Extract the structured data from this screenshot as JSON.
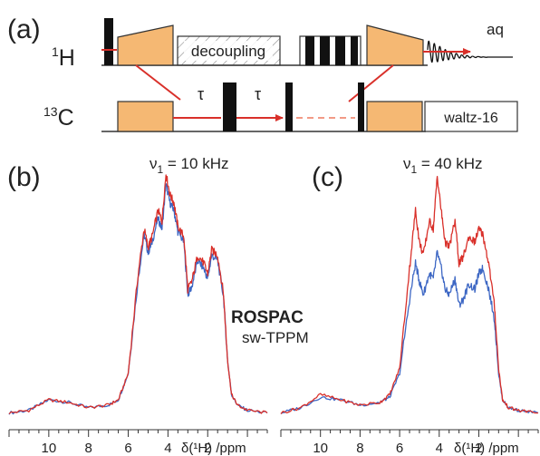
{
  "panel_labels": {
    "a": "(a)",
    "b": "(b)",
    "c": "(c)"
  },
  "pulse_sequence": {
    "channel_1H": {
      "mass": "1",
      "element": "H"
    },
    "channel_13C": {
      "mass": "13",
      "element": "C"
    },
    "decoupling_label": "decoupling",
    "acquisition_label": "aq",
    "tau_label_1": "τ",
    "tau_label_2": "τ",
    "carbon_decoupling_label": "waltz-16",
    "colors": {
      "cp_block": "#f5b873",
      "pulse": "#111111",
      "transfer_arrow": "#d9302a",
      "dashed_line": "#f29a86"
    }
  },
  "spectra": {
    "panel_b": {
      "nu_label": "ν",
      "nu_sub": "1",
      "nu_value": " = 10 kHz"
    },
    "panel_c": {
      "nu_label": "ν",
      "nu_sub": "1",
      "nu_value": " = 40 kHz"
    },
    "legend": [
      {
        "name": "ROSPAC",
        "color": "#d9302a"
      },
      {
        "name": "sw-TPPM",
        "color": "#3d67c4"
      }
    ],
    "x_axis": {
      "ticks_b": [
        "10",
        "8",
        "6",
        "4",
        "2"
      ],
      "ticks_c": [
        "10",
        "8",
        "6",
        "4",
        "2"
      ],
      "label_b": "δ(¹H) /ppm",
      "label_c": "δ(¹H) /ppm",
      "range_ppm": [
        12,
        -1
      ],
      "minor_tick_step_ppm": 0.5
    },
    "chart_data": [
      {
        "type": "line",
        "panel": "b",
        "xlabel": "δ(¹H) /ppm",
        "xlim": [
          12,
          -1
        ],
        "ylim": [
          0,
          1.0
        ],
        "series": [
          {
            "name": "ROSPAC",
            "color": "#d9302a",
            "x": [
              12.0,
              11.0,
              10.0,
              9.0,
              8.0,
              7.0,
              6.5,
              6.0,
              5.5,
              5.2,
              5.0,
              4.8,
              4.5,
              4.3,
              4.1,
              3.9,
              3.7,
              3.5,
              3.2,
              3.0,
              2.8,
              2.5,
              2.2,
              2.0,
              1.8,
              1.5,
              1.2,
              1.0,
              0.8,
              0.5,
              0.0,
              -1.0
            ],
            "y": [
              0.05,
              0.06,
              0.1,
              0.09,
              0.07,
              0.08,
              0.1,
              0.2,
              0.58,
              0.75,
              0.68,
              0.72,
              0.82,
              0.78,
              0.96,
              0.88,
              0.85,
              0.76,
              0.72,
              0.52,
              0.55,
              0.65,
              0.62,
              0.58,
              0.67,
              0.65,
              0.5,
              0.25,
              0.12,
              0.08,
              0.06,
              0.05
            ]
          },
          {
            "name": "sw-TPPM",
            "color": "#3d67c4",
            "x": [
              12.0,
              11.0,
              10.0,
              9.0,
              8.0,
              7.0,
              6.5,
              6.0,
              5.5,
              5.2,
              5.0,
              4.8,
              4.5,
              4.3,
              4.1,
              3.9,
              3.7,
              3.5,
              3.2,
              3.0,
              2.8,
              2.5,
              2.2,
              2.0,
              1.8,
              1.5,
              1.2,
              1.0,
              0.8,
              0.5,
              0.0,
              -1.0
            ],
            "y": [
              0.05,
              0.06,
              0.1,
              0.09,
              0.07,
              0.08,
              0.1,
              0.2,
              0.56,
              0.73,
              0.66,
              0.7,
              0.79,
              0.75,
              0.92,
              0.85,
              0.82,
              0.74,
              0.7,
              0.5,
              0.53,
              0.63,
              0.6,
              0.56,
              0.65,
              0.63,
              0.49,
              0.25,
              0.12,
              0.08,
              0.06,
              0.05
            ]
          }
        ]
      },
      {
        "type": "line",
        "panel": "c",
        "xlabel": "δ(¹H) /ppm",
        "xlim": [
          12,
          -1
        ],
        "ylim": [
          0,
          1.0
        ],
        "series": [
          {
            "name": "ROSPAC",
            "color": "#d9302a",
            "x": [
              12.0,
              11.0,
              10.0,
              9.0,
              8.0,
              7.0,
              6.5,
              6.0,
              5.5,
              5.2,
              5.0,
              4.8,
              4.5,
              4.3,
              4.1,
              3.9,
              3.7,
              3.5,
              3.2,
              3.0,
              2.8,
              2.5,
              2.2,
              2.0,
              1.8,
              1.5,
              1.2,
              1.0,
              0.8,
              0.5,
              0.0,
              -1.0
            ],
            "y": [
              0.05,
              0.07,
              0.12,
              0.1,
              0.08,
              0.09,
              0.12,
              0.22,
              0.6,
              0.82,
              0.7,
              0.65,
              0.78,
              0.75,
              0.95,
              0.82,
              0.7,
              0.68,
              0.78,
              0.62,
              0.64,
              0.72,
              0.7,
              0.75,
              0.73,
              0.62,
              0.45,
              0.22,
              0.1,
              0.07,
              0.06,
              0.05
            ]
          },
          {
            "name": "sw-TPPM",
            "color": "#3d67c4",
            "x": [
              12.0,
              11.0,
              10.0,
              9.0,
              8.0,
              7.0,
              6.5,
              6.0,
              5.5,
              5.2,
              5.0,
              4.8,
              4.5,
              4.3,
              4.1,
              3.9,
              3.7,
              3.5,
              3.2,
              3.0,
              2.8,
              2.5,
              2.2,
              2.0,
              1.8,
              1.5,
              1.2,
              1.0,
              0.8,
              0.5,
              0.0,
              -1.0
            ],
            "y": [
              0.05,
              0.07,
              0.11,
              0.1,
              0.08,
              0.09,
              0.11,
              0.2,
              0.48,
              0.62,
              0.55,
              0.5,
              0.58,
              0.56,
              0.66,
              0.6,
              0.52,
              0.5,
              0.56,
              0.46,
              0.48,
              0.54,
              0.52,
              0.58,
              0.6,
              0.52,
              0.4,
              0.2,
              0.1,
              0.07,
              0.06,
              0.05
            ]
          }
        ]
      }
    ]
  }
}
